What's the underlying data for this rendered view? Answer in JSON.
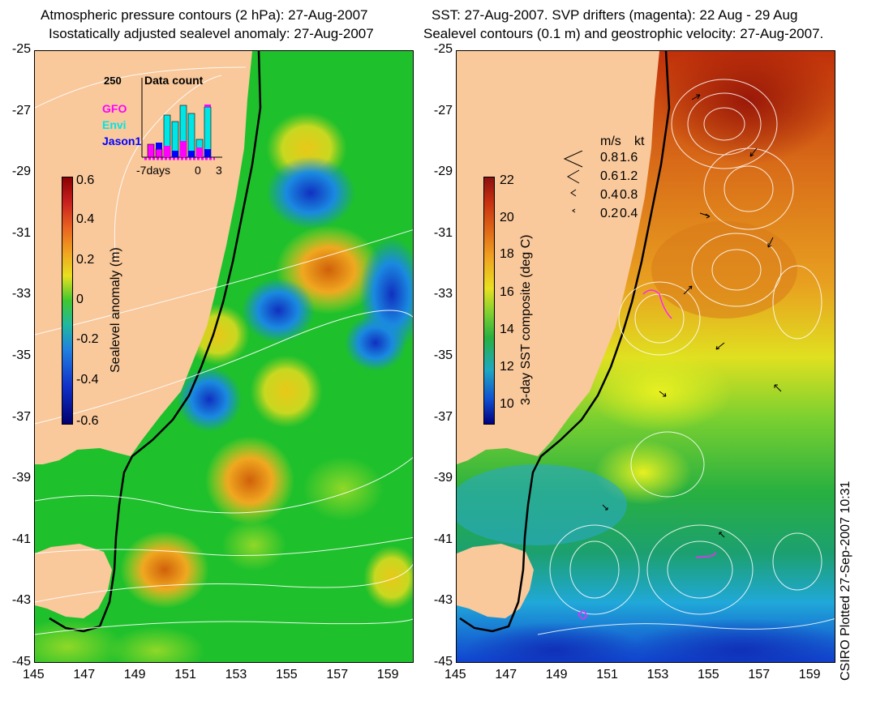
{
  "left_panel": {
    "title_line1": "Atmospheric pressure contours (2 hPa): 27-Aug-2007",
    "title_line2": "Isostatically adjusted sealevel anomaly: 27-Aug-2007",
    "colorbar": {
      "label": "Sealevel anomaly (m)",
      "ticks": [
        "0.6",
        "0.4",
        "0.2",
        "0",
        "-0.2",
        "-0.4",
        "-0.6"
      ],
      "range": [
        -0.6,
        0.6
      ]
    },
    "inset": {
      "title": "Data count",
      "ymax_label": "250",
      "x_ticks": [
        "-7days",
        "0",
        "3"
      ],
      "legend": [
        {
          "name": "GFO",
          "color": "#ff00ff"
        },
        {
          "name": "Envi",
          "color": "#00e5e5"
        },
        {
          "name": "Jason1",
          "color": "#0000ff"
        }
      ]
    }
  },
  "right_panel": {
    "title_line1": "SST: 27-Aug-2007. SVP drifters (magenta): 22 Aug - 29 Aug",
    "title_line2": "Sealevel contours (0.1 m) and geostrophic velocity: 27-Aug-2007.",
    "colorbar": {
      "label": "3-day SST composite (deg C)",
      "ticks": [
        "22",
        "20",
        "18",
        "16",
        "14",
        "12",
        "10"
      ],
      "range": [
        9,
        22
      ]
    },
    "speed_legend": {
      "header_ms": "m/s",
      "header_kt": "kt",
      "rows": [
        {
          "ms": "0.8",
          "kt": "1.6"
        },
        {
          "ms": "0.6",
          "kt": "1.2"
        },
        {
          "ms": "0.4",
          "kt": "0.8"
        },
        {
          "ms": "0.2",
          "kt": "0.4"
        }
      ]
    }
  },
  "axes": {
    "y_ticks": [
      "-25",
      "-27",
      "-29",
      "-31",
      "-33",
      "-35",
      "-37",
      "-39",
      "-41",
      "-43",
      "-45"
    ],
    "x_ticks": [
      "145",
      "147",
      "149",
      "151",
      "153",
      "155",
      "157",
      "159"
    ]
  },
  "credit": "CSIRO Plotted 27-Sep-2007 10:31",
  "colors": {
    "land": "#f9c89b",
    "ocean_green": "#22c32d",
    "coast": "#000000"
  }
}
